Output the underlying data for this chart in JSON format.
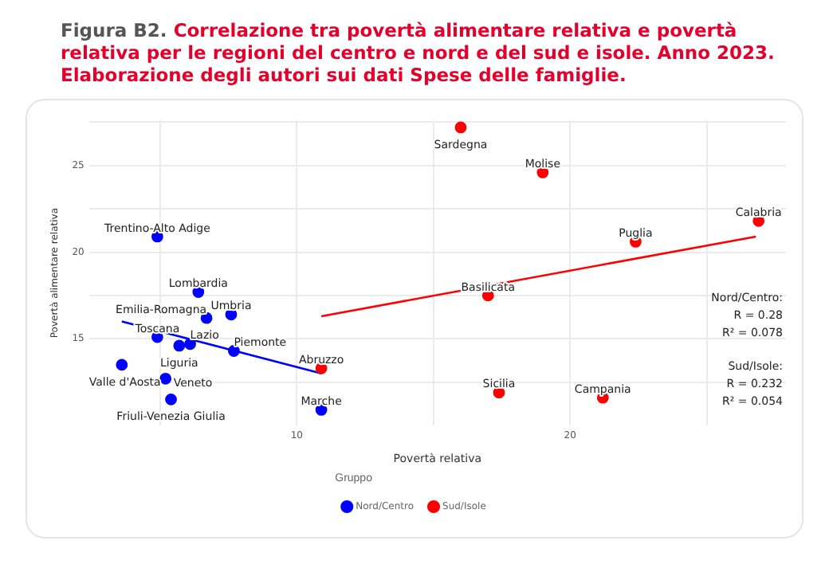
{
  "chart_data": {
    "type": "scatter",
    "title": "Figura B2.",
    "subtitle": "Correlazione tra povertà alimentare relativa e povertà relativa per le regioni del centro e nord e del sud e isole. Anno 2023. Elaborazione degli autori sui dati Spese delle famiglie.",
    "xlabel": "Povertà relativa",
    "ylabel": "Povertà alimentare relativa",
    "legend_title": "Gruppo",
    "series": [
      {
        "name": "Nord/Centro",
        "color": "#0000ff",
        "x": [
          4.9,
          6.4,
          6.7,
          7.6,
          4.9,
          5.7,
          6.1,
          7.7,
          3.6,
          5.2,
          5.4,
          10.9
        ],
        "values": [
          20.9,
          17.7,
          16.2,
          16.4,
          15.1,
          14.6,
          14.7,
          14.3,
          13.5,
          12.7,
          11.5,
          10.9
        ]
      },
      {
        "name": "Sud/Isole",
        "color": "#ff0000",
        "x": [
          10.9,
          16.0,
          19.0,
          26.9,
          22.4,
          17.0,
          17.4,
          21.2
        ],
        "values": [
          13.3,
          27.2,
          24.6,
          21.8,
          20.6,
          17.5,
          11.9,
          11.6
        ]
      },
      {
        "type": "line",
        "marker": "none",
        "color": "#0000ff",
        "x": [
          3.6,
          10.9
        ],
        "values": [
          16.0,
          13.0
        ]
      },
      {
        "type": "line",
        "marker": "none",
        "color": "#ff0000",
        "x": [
          10.9,
          26.8
        ],
        "values": [
          16.3,
          20.9
        ]
      }
    ],
    "annotations": [
      {
        "text": "Trentino-Alto Adige",
        "x": 4.9,
        "y": 20.9
      },
      {
        "text": "Lombardia",
        "x": 6.4,
        "y": 17.7
      },
      {
        "text": "Emilia-Romagna",
        "x": 6.7,
        "y": 16.2
      },
      {
        "text": "Umbria",
        "x": 7.6,
        "y": 16.4
      },
      {
        "text": "Toscana",
        "x": 4.9,
        "y": 15.1
      },
      {
        "text": "Liguria",
        "x": 5.7,
        "y": 14.6
      },
      {
        "text": "Lazio",
        "x": 6.1,
        "y": 14.7
      },
      {
        "text": "Piemonte",
        "x": 7.7,
        "y": 14.3
      },
      {
        "text": "Valle d'Aosta",
        "x": 3.6,
        "y": 13.5
      },
      {
        "text": "Veneto",
        "x": 5.2,
        "y": 12.7
      },
      {
        "text": "Friuli-Venezia Giulia",
        "x": 5.4,
        "y": 11.5
      },
      {
        "text": "Marche",
        "x": 10.9,
        "y": 10.9
      },
      {
        "text": "Abruzzo",
        "x": 10.9,
        "y": 13.3
      },
      {
        "text": "Sardegna",
        "x": 16.0,
        "y": 27.2
      },
      {
        "text": "Molise",
        "x": 19.0,
        "y": 24.6
      },
      {
        "text": "Calabria",
        "x": 26.9,
        "y": 21.8
      },
      {
        "text": "Puglia",
        "x": 22.4,
        "y": 20.6
      },
      {
        "text": "Basilicata",
        "x": 17.0,
        "y": 17.5
      },
      {
        "text": "Sicilia",
        "x": 17.4,
        "y": 11.9
      },
      {
        "text": "Campania",
        "x": 21.2,
        "y": 11.6
      },
      "Nord/Centro:\nR = 0.28\nR² = 0.078",
      "Sud/Isole:\nR = 0.232\nR² = 0.054"
    ],
    "xlim": [
      2.4,
      27.9
    ],
    "ylim": [
      10,
      27.6
    ],
    "xticks": [
      {
        "value": 5,
        "label": null
      },
      10,
      {
        "value": 15,
        "label": null
      },
      20,
      {
        "value": 25,
        "label": null
      }
    ],
    "yticks": [
      {
        "value": 12.5,
        "label": null
      },
      15,
      {
        "value": 17.5,
        "label": null
      },
      20,
      {
        "value": 22.5,
        "label": null
      },
      25,
      {
        "value": 27.5,
        "label": null
      }
    ],
    "grid": true,
    "legend": "bottom",
    "marker": "circle"
  }
}
